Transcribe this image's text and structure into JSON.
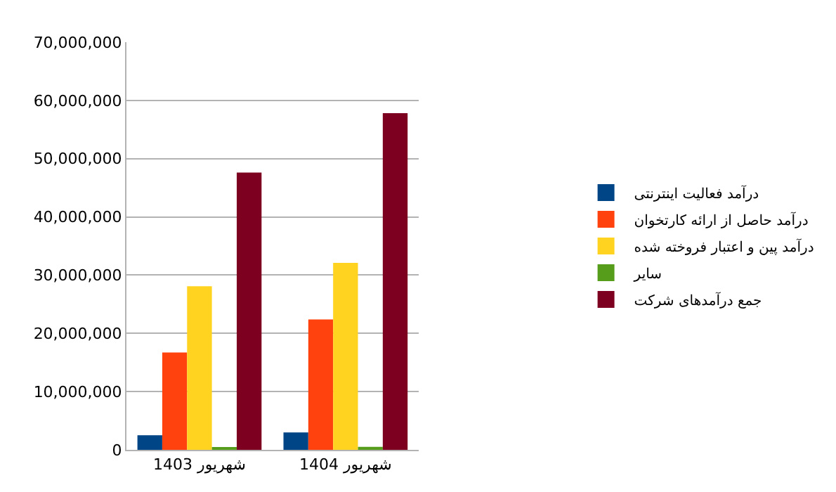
{
  "chart_data": {
    "type": "bar",
    "categories": [
      "شهریور 1403",
      "شهریور 1404"
    ],
    "series": [
      {
        "name": "درآمد فعالیت اینترنتی",
        "color": "#004586",
        "values": [
          2500000,
          3000000
        ]
      },
      {
        "name": "درآمد حاصل از ارائه کارتخوان",
        "color": "#ff420e",
        "values": [
          16700000,
          22400000
        ]
      },
      {
        "name": "درآمد پین و اعتبار فروخته شده",
        "color": "#ffd320",
        "values": [
          28100000,
          32100000
        ]
      },
      {
        "name": "سایر",
        "color": "#579d1c",
        "values": [
          300000,
          500000
        ]
      },
      {
        "name": "جمع درآمدهای شرکت",
        "color": "#7e0021",
        "values": [
          47600000,
          57800000
        ]
      }
    ],
    "ylim": [
      0,
      70000000
    ],
    "yticks": [
      {
        "value": 0,
        "label": "0"
      },
      {
        "value": 10000000,
        "label": "10,000,000"
      },
      {
        "value": 20000000,
        "label": "20,000,000"
      },
      {
        "value": 30000000,
        "label": "30,000,000"
      },
      {
        "value": 40000000,
        "label": "40,000,000"
      },
      {
        "value": 50000000,
        "label": "50,000,000"
      },
      {
        "value": 60000000,
        "label": "60,000,000"
      },
      {
        "value": 70000000,
        "label": "70,000,000"
      }
    ],
    "grid": "y",
    "legend": "right"
  }
}
